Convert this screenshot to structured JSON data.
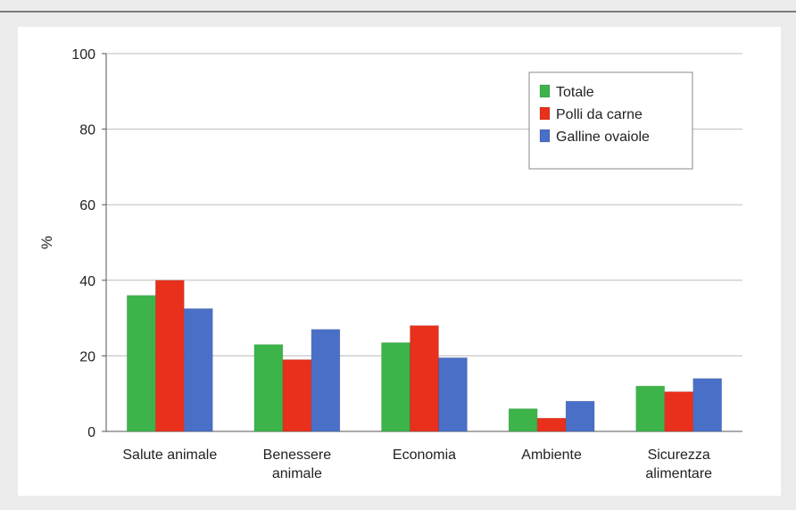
{
  "header": {
    "visible_title_fragment": ""
  },
  "chart_data": {
    "type": "bar",
    "title": "",
    "xlabel": "",
    "ylabel": "%",
    "ylim": [
      0,
      100
    ],
    "yticks": [
      0,
      20,
      40,
      60,
      80,
      100
    ],
    "grid": true,
    "legend_position": "top-right",
    "categories": [
      [
        "Salute animale"
      ],
      [
        "Benessere",
        "animale"
      ],
      [
        "Economia"
      ],
      [
        "Ambiente"
      ],
      [
        "Sicurezza",
        "alimentare"
      ]
    ],
    "series": [
      {
        "name": "Totale",
        "color": "#3cb44a",
        "values": [
          36,
          23,
          23.5,
          6,
          12
        ]
      },
      {
        "name": "Polli da carne",
        "color": "#e8301c",
        "values": [
          40,
          19,
          28,
          3.5,
          10.5
        ]
      },
      {
        "name": "Galline ovaiole",
        "color": "#4a6fc7",
        "values": [
          32.5,
          27,
          19.5,
          8,
          14
        ]
      }
    ]
  }
}
